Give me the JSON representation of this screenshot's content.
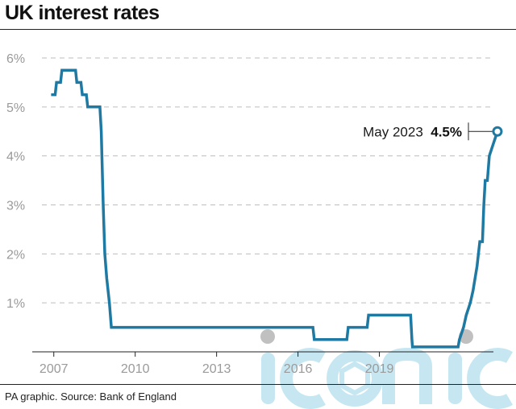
{
  "title": "UK interest rates",
  "source": "PA graphic. Source: Bank of England",
  "watermark": "iconic",
  "colors": {
    "line": "#1f7aa3",
    "grid": "#bdbdbd",
    "axis": "#222222",
    "tick_text": "#9a9a9a",
    "watermark": "#bfe3f0"
  },
  "chart_data": {
    "type": "line",
    "title": "UK interest rates",
    "xlabel": "",
    "ylabel": "",
    "xlim": [
      2006.8,
      2023.5
    ],
    "ylim": [
      0,
      6
    ],
    "grid": true,
    "x_ticks": [
      2007,
      2010,
      2013,
      2016,
      2019
    ],
    "x_tick_labels": [
      "2007",
      "2010",
      "2013",
      "2016",
      "2019"
    ],
    "y_ticks": [
      1,
      2,
      3,
      4,
      5,
      6
    ],
    "y_tick_labels": [
      "1%",
      "2%",
      "3%",
      "4%",
      "5%",
      "6%"
    ],
    "series": [
      {
        "step": true,
        "points": [
          [
            2006.9,
            5.25
          ],
          [
            2007.05,
            5.25
          ],
          [
            2007.1,
            5.5
          ],
          [
            2007.25,
            5.5
          ],
          [
            2007.3,
            5.75
          ],
          [
            2007.8,
            5.75
          ],
          [
            2007.85,
            5.5
          ],
          [
            2008.0,
            5.5
          ],
          [
            2008.05,
            5.25
          ],
          [
            2008.2,
            5.25
          ],
          [
            2008.25,
            5.0
          ],
          [
            2008.7,
            5.0
          ],
          [
            2008.75,
            4.5
          ],
          [
            2008.82,
            3.0
          ],
          [
            2008.88,
            2.0
          ],
          [
            2008.95,
            1.5
          ],
          [
            2009.05,
            1.0
          ],
          [
            2009.12,
            0.5
          ],
          [
            2016.55,
            0.5
          ],
          [
            2016.6,
            0.25
          ],
          [
            2017.8,
            0.25
          ],
          [
            2017.85,
            0.5
          ],
          [
            2018.55,
            0.5
          ],
          [
            2018.6,
            0.75
          ],
          [
            2020.15,
            0.75
          ],
          [
            2020.2,
            0.25
          ],
          [
            2020.22,
            0.1
          ],
          [
            2021.9,
            0.1
          ],
          [
            2021.95,
            0.25
          ],
          [
            2022.1,
            0.5
          ],
          [
            2022.2,
            0.75
          ],
          [
            2022.35,
            1.0
          ],
          [
            2022.45,
            1.25
          ],
          [
            2022.6,
            1.75
          ],
          [
            2022.7,
            2.25
          ],
          [
            2022.8,
            2.25
          ],
          [
            2022.85,
            3.0
          ],
          [
            2022.9,
            3.5
          ],
          [
            2022.98,
            3.5
          ],
          [
            2023.05,
            4.0
          ],
          [
            2023.2,
            4.25
          ],
          [
            2023.35,
            4.5
          ]
        ]
      }
    ],
    "annotation": {
      "label": "May 2023",
      "value": "4.5%",
      "x": 2023.35,
      "y": 4.5
    }
  }
}
